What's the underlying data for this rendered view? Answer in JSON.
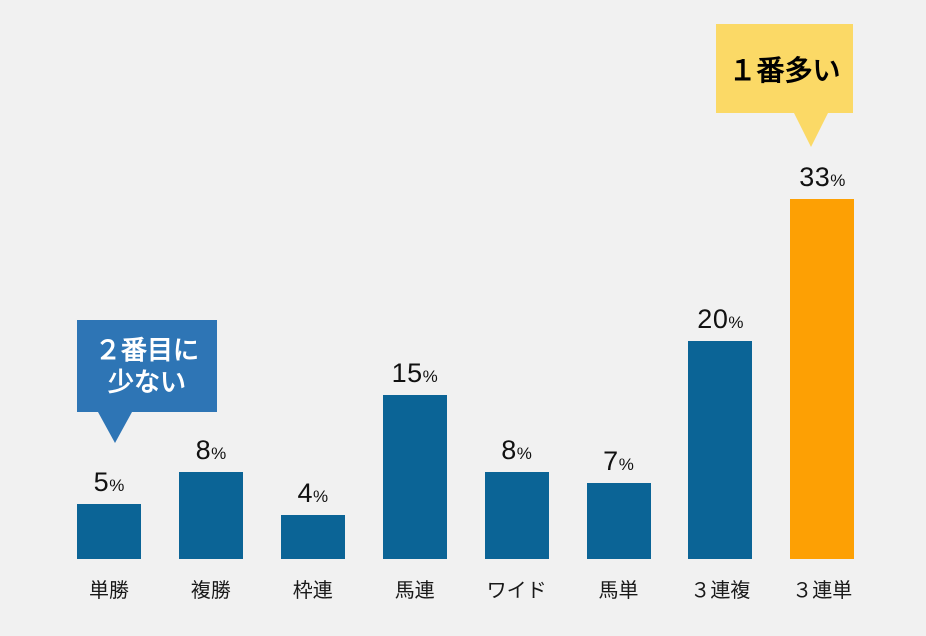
{
  "background_color": "#F1F1F1",
  "chart_data": {
    "type": "bar",
    "categories": [
      "単勝",
      "複勝",
      "枠連",
      "馬連",
      "ワイド",
      "馬単",
      "３連複",
      "３連単"
    ],
    "values": [
      5,
      8,
      4,
      15,
      8,
      7,
      20,
      33
    ],
    "value_suffix": "%",
    "title": "",
    "xlabel": "",
    "ylabel": "",
    "ylim": [
      0,
      35
    ],
    "grid": false,
    "legend": "none",
    "axis_labels_visible": false,
    "data_labels_visible": true,
    "bar_color_default": "#0B6496",
    "bar_color_highlight": "#FDA004",
    "bar_colors": [
      "#0B6496",
      "#0B6496",
      "#0B6496",
      "#0B6496",
      "#0B6496",
      "#0B6496",
      "#0B6496",
      "#FDA004"
    ],
    "highlight_index": 7,
    "annotations": [
      {
        "text": "２番目に少ない",
        "lines": [
          "２番目に",
          "少ない"
        ],
        "target_category": "単勝",
        "shape": "speech-bubble-down",
        "fill": "#2E75B5",
        "text_color": "#FFFFFF"
      },
      {
        "text": "１番多い",
        "lines": [
          "１番多い"
        ],
        "target_category": "３連単",
        "shape": "speech-bubble-down",
        "fill": "#FBD966",
        "text_color": "#000000"
      }
    ]
  },
  "colors": {
    "background": "#F1F1F1",
    "bar_blue": "#0B6496",
    "bar_orange": "#FDA004",
    "callout_blue": "#2E75B5",
    "callout_yellow": "#FBD966",
    "text": "#111111"
  }
}
